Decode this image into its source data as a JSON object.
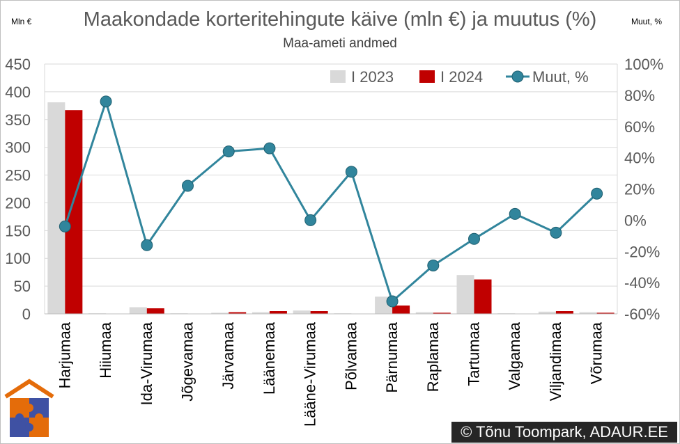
{
  "title": "Maakondade korteritehingute käive (mln €) ja muutus (%)",
  "subtitle": "Maa-ameti andmed",
  "y1_unit": "Mln €",
  "y2_unit": "Muut, %",
  "copyright": "© Tõnu Toompark, ADAUR.EE",
  "colors": {
    "bar_2023": "#d9d9d9",
    "bar_2024": "#c00000",
    "line": "#31859c",
    "grid": "#d9d9d9"
  },
  "chart_data": {
    "type": "bar",
    "categories": [
      "Harjumaa",
      "Hiiumaa",
      "Ida-Virumaa",
      "Jõgevamaa",
      "Järvamaa",
      "Läänemaa",
      "Lääne-Virumaa",
      "Põlvamaa",
      "Pärnumaa",
      "Raplamaa",
      "Tartumaa",
      "Valgamaa",
      "Viljandimaa",
      "Võrumaa"
    ],
    "series": [
      {
        "name": "I 2023",
        "axis": "left",
        "type": "bar",
        "values": [
          381,
          1,
          12,
          1,
          2,
          3,
          6,
          1,
          31,
          3,
          70,
          1,
          4,
          3
        ]
      },
      {
        "name": "I 2024",
        "axis": "left",
        "type": "bar",
        "values": [
          367,
          0,
          10,
          0,
          3,
          5,
          5,
          0,
          15,
          2,
          62,
          0,
          5,
          2
        ]
      },
      {
        "name": "Muut, %",
        "axis": "right",
        "type": "line",
        "values": [
          -4,
          76,
          -16,
          22,
          44,
          46,
          0,
          31,
          -52,
          -29,
          -12,
          4,
          -8,
          17
        ]
      }
    ],
    "y_left": {
      "min": 0,
      "max": 450,
      "ticks": [
        "0",
        "50",
        "100",
        "150",
        "200",
        "250",
        "300",
        "350",
        "400",
        "450"
      ]
    },
    "y_right": {
      "min": -60,
      "max": 100,
      "ticks": [
        "-60%",
        "-40%",
        "-20%",
        "0%",
        "20%",
        "40%",
        "60%",
        "80%",
        "100%"
      ]
    },
    "grid": true,
    "legend": "top-right"
  }
}
